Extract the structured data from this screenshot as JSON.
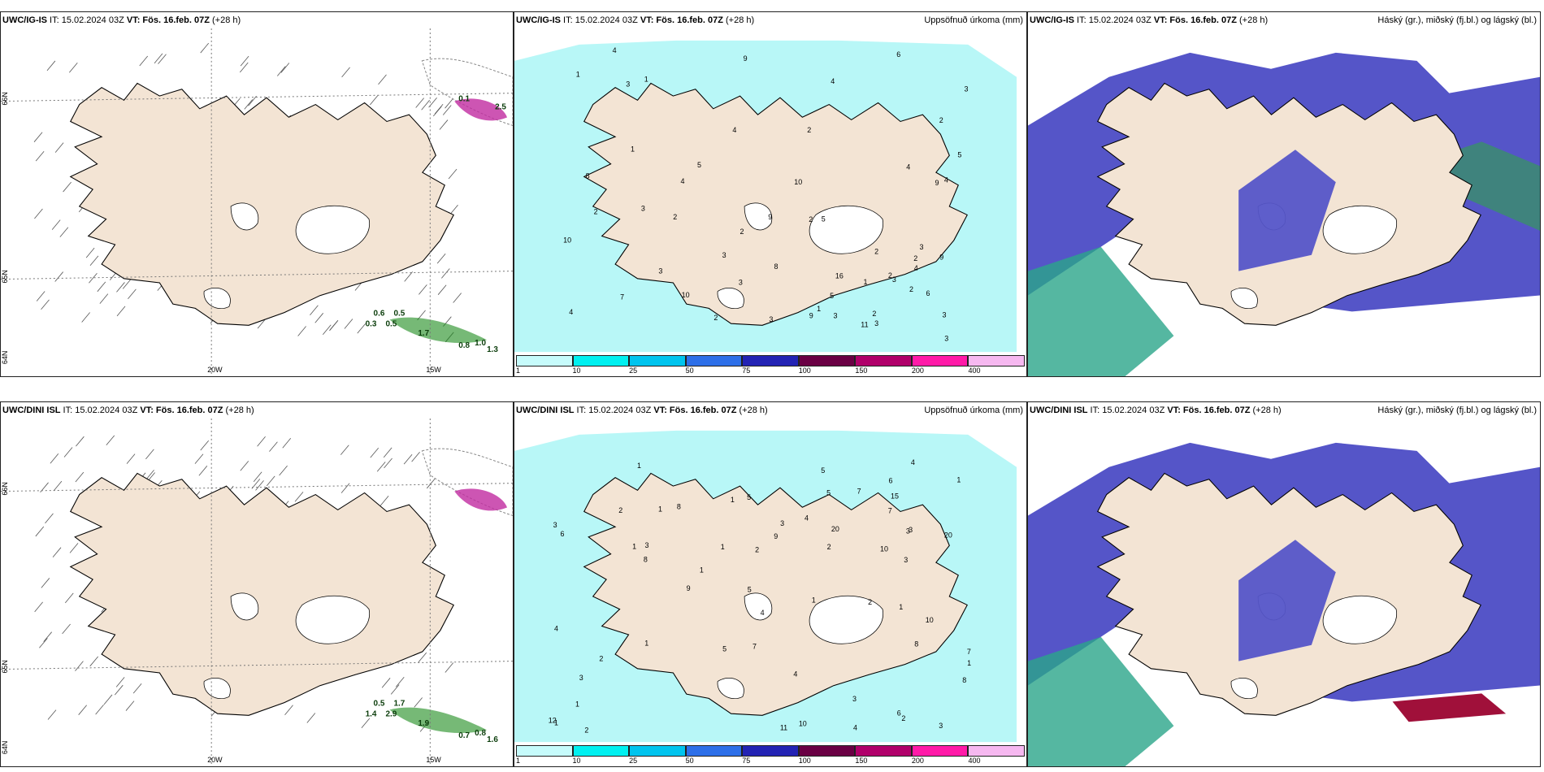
{
  "panels": [
    {
      "id": "p1",
      "title_bold": "UWC/IG-IS",
      "it": "IT: 15.02.2024 03Z",
      "vt_bold": "VT: Fös. 16.feb. 07Z",
      "lead": "(+28 h)",
      "right": "",
      "ticks": [
        "20W",
        "15W"
      ],
      "lat": [
        "66N",
        "65N",
        "64N"
      ],
      "values": [
        "0.6",
        "0.5",
        "0.3",
        "0.5",
        "1.7",
        "0.8",
        "1.0",
        "1.3",
        "2.5",
        "0.1"
      ]
    },
    {
      "id": "p2",
      "title_bold": "UWC/IG-IS",
      "it": "IT: 15.02.2024 03Z",
      "vt_bold": "VT: Fös. 16.feb. 07Z",
      "lead": "(+28 h)",
      "right": "Uppsöfnuð úrkoma (mm)",
      "values": [
        "4",
        "2",
        "2",
        "1",
        "3",
        "3",
        "2",
        "5",
        "5",
        "4",
        "3",
        "9",
        "9",
        "10",
        "16",
        "8",
        "9",
        "10",
        "6",
        "3",
        "2",
        "3",
        "2",
        "2",
        "3",
        "4",
        "7",
        "4",
        "3",
        "5",
        "9",
        "10",
        "4",
        "1",
        "1",
        "2",
        "2",
        "3",
        "3",
        "4",
        "2",
        "2",
        "8",
        "3",
        "3",
        "1",
        "1",
        "4",
        "4",
        "6",
        "5",
        "11",
        "3",
        "2",
        "3",
        "2",
        "9"
      ]
    },
    {
      "id": "p3",
      "title_bold": "UWC/IG-IS",
      "it": "IT: 15.02.2024 03Z",
      "vt_bold": "VT: Fös. 16.feb. 07Z",
      "lead": "(+28 h)",
      "right": "Háský (gr.), miðský (fj.bl.) og lágský (bl.)"
    },
    {
      "id": "p4",
      "title_bold": "UWC/DINI ISL",
      "it": "IT: 15.02.2024 03Z",
      "vt_bold": "VT: Fös. 16.feb. 07Z",
      "lead": "(+28 h)",
      "right": "",
      "ticks": [
        "20W",
        "15W"
      ],
      "lat": [
        "66N",
        "65N",
        "64N"
      ],
      "values": [
        "0.5",
        "1.7",
        "1.4",
        "2.9",
        "1.9",
        "0.7",
        "0.8",
        "1.6"
      ]
    },
    {
      "id": "p5",
      "title_bold": "UWC/DINI ISL",
      "it": "IT: 15.02.2024 03Z",
      "vt_bold": "VT: Fös. 16.feb. 07Z",
      "lead": "(+28 h)",
      "right": "Uppsöfnuð úrkoma (mm)",
      "values": [
        "1",
        "1",
        "1",
        "1",
        "1",
        "4",
        "8",
        "11",
        "3",
        "4",
        "3",
        "2",
        "2",
        "1",
        "5",
        "4",
        "7",
        "7",
        "6",
        "8",
        "8",
        "10",
        "20",
        "20",
        "15",
        "12",
        "3",
        "4",
        "1",
        "2",
        "1",
        "5",
        "8",
        "2",
        "2",
        "3",
        "6",
        "4",
        "5",
        "4",
        "1",
        "9",
        "3",
        "2",
        "2",
        "1",
        "3",
        "5",
        "6",
        "3",
        "10",
        "10",
        "7",
        "7",
        "5",
        "9",
        "1",
        "3",
        "3",
        "1",
        "1"
      ]
    },
    {
      "id": "p6",
      "title_bold": "UWC/DINI ISL",
      "it": "IT: 15.02.2024 03Z",
      "vt_bold": "VT: Fös. 16.feb. 07Z",
      "lead": "(+28 h)",
      "right": "Háský (gr.), miðský (fj.bl.) og lágský (bl.)"
    }
  ],
  "colorbar": {
    "colors": [
      "#c6fbfb",
      "#00f0f0",
      "#00c4ee",
      "#2d6fe8",
      "#2323b4",
      "#6a0044",
      "#b0006a",
      "#ff1aa8",
      "#f6b8f0"
    ],
    "labels": [
      "1",
      "10",
      "25",
      "50",
      "75",
      "100",
      "150",
      "200",
      "400"
    ]
  },
  "colors": {
    "land": "#f3e4d4",
    "precip_light": "#b8f7f7",
    "cloud_low": "#5555c8",
    "cloud_mid": "#2aa58a",
    "cloud_high": "#3c8c70",
    "precip_green": "#1a8a1a",
    "precip_pink": "#c02aa0"
  }
}
